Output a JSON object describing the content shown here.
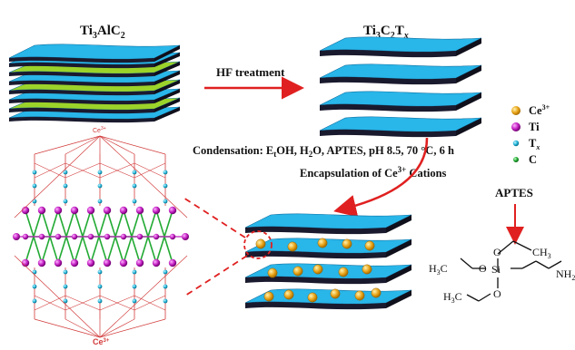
{
  "labels": {
    "precursor": "Ti",
    "precursor_sub3": "3",
    "precursor_mid": "AlC",
    "precursor_sub2": "2",
    "mxene_a": "Ti",
    "mxene_sub3": "3",
    "mxene_b": "C",
    "mxene_sub2": "2",
    "mxene_c": "T",
    "mxene_subx": "x",
    "hf": "HF treatment",
    "condensation": "Condensation: E",
    "condensation_sub": "t",
    "condensation_rest": "OH, H",
    "condensation_h2sub": "2",
    "condensation_tail": "O, APTES, pH 8.5, 70 °C, 6 h",
    "encapsulation_a": "Encapsulation of Ce",
    "encapsulation_sup": "3+",
    "encapsulation_b": " Cations",
    "aptes": "APTES",
    "ce_top": "Ce",
    "ce_top_sup": "3+",
    "ce_bottom": "Ce",
    "ce_bottom_sup": "3+"
  },
  "legend": [
    {
      "symbol": "Ce",
      "sup": "3+",
      "color": "#e8a317"
    },
    {
      "symbol": "Ti",
      "sup": "",
      "color": "#c01fc0"
    },
    {
      "symbol": "T",
      "sub": "x",
      "color": "#1fb4d8"
    },
    {
      "symbol": "C",
      "sup": "",
      "color": "#22aa33"
    }
  ],
  "chem": {
    "ch3_top": "CH",
    "ch3_top_sub": "3",
    "h3c_left": "H",
    "h3c_left_sub": "3",
    "h3c_left_c": "C",
    "h3c_bottom": "H",
    "h3c_bottom_sub": "3",
    "h3c_bottom_c": "C",
    "o_top": "O",
    "o_left": "O",
    "o_bottom": "O",
    "si": "Si",
    "nh2": "NH",
    "nh2_sub": "2"
  },
  "colors": {
    "sheet_top": "#29b6e9",
    "sheet_side": "#1a1a2e",
    "sheet_green": "#9bd32a",
    "arrow": "#e02020",
    "dashed": "#e02020",
    "ce": "#e8a317",
    "ti": "#c01fc0",
    "tx": "#1fb4d8",
    "c": "#22aa33"
  }
}
